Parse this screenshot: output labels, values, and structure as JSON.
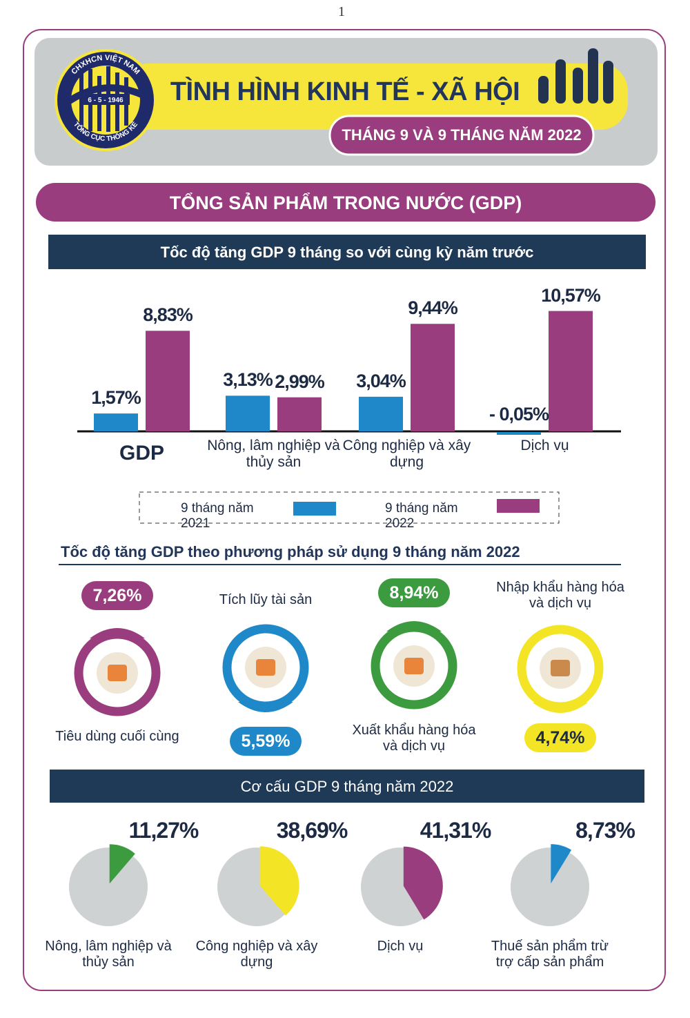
{
  "page_number": "1",
  "header": {
    "logo_top": "CHXHCN VIỆT NAM",
    "logo_date": "6 - 5 - 1946",
    "logo_bottom": "TỔNG CỤC THỐNG KÊ",
    "title": "TÌNH HÌNH KINH TẾ - XÃ HỘI",
    "subtitle": "THÁNG 9 VÀ 9 THÁNG NĂM 2022"
  },
  "section_title": "TỔNG SẢN PHẨM TRONG NƯỚC (GDP)",
  "chart_data": [
    {
      "type": "bar",
      "title": "Tốc độ tăng GDP 9 tháng so với cùng kỳ năm trước",
      "categories": [
        "GDP",
        "Nông, lâm nghiệp và thủy sản",
        "Công nghiệp và xây dựng",
        "Dịch vụ"
      ],
      "series": [
        {
          "name": "9 tháng năm 2021",
          "color": "#1e88c9",
          "values": [
            1.57,
            3.13,
            3.04,
            -0.05
          ],
          "value_labels": [
            "1,57%",
            "3,13%",
            "3,04%",
            "- 0,05%"
          ]
        },
        {
          "name": "9 tháng năm 2022",
          "color": "#9a3d7e",
          "values": [
            8.83,
            2.99,
            9.44,
            10.57
          ],
          "value_labels": [
            "8,83%",
            "2,99%",
            "9,44%",
            "10,57%"
          ]
        }
      ]
    },
    {
      "type": "indicator",
      "title": "Tốc độ tăng GDP theo phương pháp sử dụng 9 tháng năm 2022",
      "categories": [
        "Tiêu dùng cuối cùng",
        "Tích lũy tài sản",
        "Xuất khẩu hàng hóa và dịch vụ",
        "Nhập khẩu hàng hóa và dịch vụ"
      ],
      "values": [
        7.26,
        5.59,
        8.94,
        4.74
      ],
      "value_labels": [
        "7,26%",
        "5,59%",
        "8,94%",
        "4,74%"
      ],
      "colors": [
        "#9a3d7e",
        "#1e88c9",
        "#3c9a3f",
        "#f3e526"
      ]
    },
    {
      "type": "pie",
      "title": "Cơ cấu GDP 9 tháng năm 2022",
      "categories": [
        "Nông, lâm nghiệp và thủy sản",
        "Công nghiệp và xây dựng",
        "Dịch vụ",
        "Thuế sản phẩm trừ trợ cấp sản phẩm"
      ],
      "values": [
        11.27,
        38.69,
        41.31,
        8.73
      ],
      "value_labels": [
        "11,27%",
        "38,69%",
        "41,31%",
        "8,73%"
      ],
      "colors": [
        "#3c9a3f",
        "#f3e526",
        "#9a3d7e",
        "#1e88c9"
      ]
    }
  ]
}
